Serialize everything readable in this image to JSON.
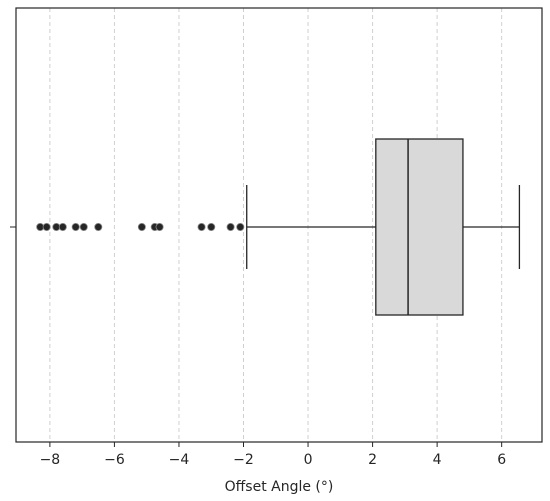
{
  "chart_data": {
    "type": "box",
    "orientation": "horizontal",
    "xlabel": "Offset Angle (°)",
    "ylabel": "",
    "xlim": [
      -9.05,
      7.25
    ],
    "xticks": [
      -8,
      -6,
      -4,
      -2,
      0,
      2,
      4,
      6
    ],
    "xtick_labels": [
      "−8",
      "−6",
      "−4",
      "−2",
      "0",
      "2",
      "4",
      "6"
    ],
    "grid": {
      "x": true,
      "y": false,
      "style": "dashed"
    },
    "box": {
      "q1": 2.1,
      "median": 3.1,
      "q3": 4.8,
      "whisker_low": -1.9,
      "whisker_high": 6.55
    },
    "outliers": [
      -8.3,
      -8.1,
      -7.8,
      -7.6,
      -7.2,
      -6.95,
      -6.5,
      -5.15,
      -4.75,
      -4.6,
      -3.3,
      -3.0,
      -2.4,
      -2.1
    ],
    "colors": {
      "box_fill": "#d9d9d9",
      "box_edge": "#262626",
      "outlier": "#262626",
      "grid": "#d0d0d0"
    }
  }
}
